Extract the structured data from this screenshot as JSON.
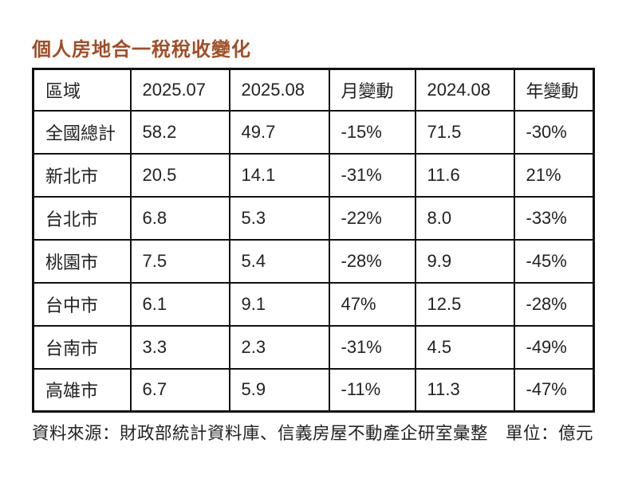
{
  "title": "個人房地合一稅稅收變化",
  "colors": {
    "title": "#a14e26",
    "border": "#111111",
    "text": "#222222",
    "background": "#ffffff"
  },
  "chart_data": {
    "type": "table",
    "title": "個人房地合一稅稅收變化",
    "unit": "億元",
    "columns": [
      "區域",
      "2025.07",
      "2025.08",
      "月變動",
      "2024.08",
      "年變動"
    ],
    "rows": [
      [
        "全國總計",
        "58.2",
        "49.7",
        "-15%",
        "71.5",
        "-30%"
      ],
      [
        "新北市",
        "20.5",
        "14.1",
        "-31%",
        "11.6",
        "21%"
      ],
      [
        "台北市",
        "6.8",
        "5.3",
        "-22%",
        "8.0",
        "-33%"
      ],
      [
        "桃園市",
        "7.5",
        "5.4",
        "-28%",
        "9.9",
        "-45%"
      ],
      [
        "台中市",
        "6.1",
        "9.1",
        "47%",
        "12.5",
        "-28%"
      ],
      [
        "台南市",
        "3.3",
        "2.3",
        "-31%",
        "4.5",
        "-49%"
      ],
      [
        "高雄市",
        "6.7",
        "5.9",
        "-11%",
        "11.3",
        "-47%"
      ]
    ]
  },
  "footer": {
    "source": "資料來源：財政部統計資料庫、信義房屋不動產企研室彙整",
    "unit": "單位：億元"
  }
}
